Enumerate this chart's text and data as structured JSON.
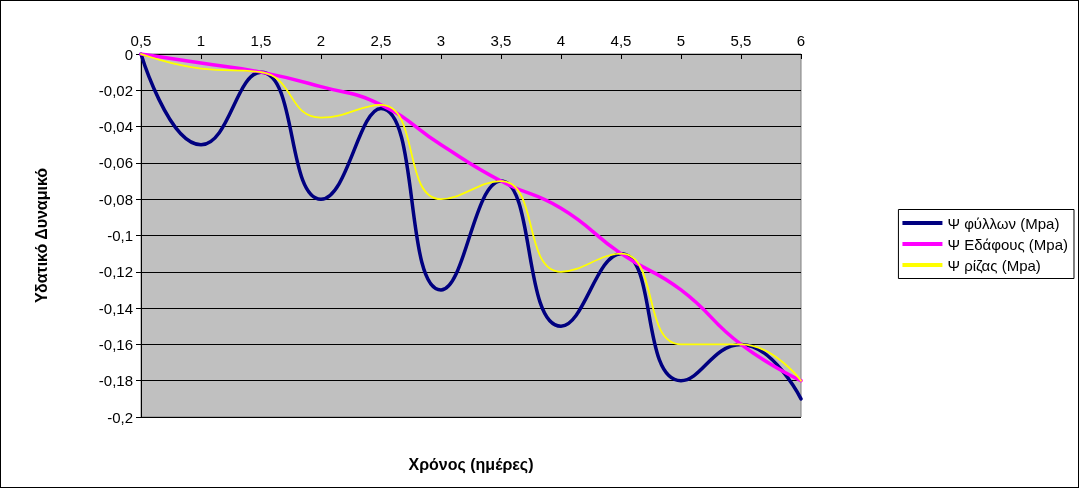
{
  "chart_data": {
    "type": "line",
    "xlabel": "Χρόνος (ημέρες)",
    "ylabel": "Υδατικό Δυναμικό",
    "categories": [
      "0,5",
      "1",
      "1,5",
      "2",
      "2,5",
      "3",
      "3,5",
      "4",
      "4,5",
      "5",
      "5,5",
      "6"
    ],
    "series": [
      {
        "name": "Ψ φύλλων (Mpa)",
        "color": "#000080",
        "values": [
          0,
          -0.05,
          -0.01,
          -0.08,
          -0.03,
          -0.13,
          -0.07,
          -0.15,
          -0.11,
          -0.18,
          -0.16,
          -0.19
        ]
      },
      {
        "name": "Ψ Εδάφους (Mpa)",
        "color": "#ff00ff",
        "values": [
          0,
          -0.005,
          -0.01,
          -0.018,
          -0.028,
          -0.05,
          -0.07,
          -0.085,
          -0.11,
          -0.13,
          -0.16,
          -0.18
        ]
      },
      {
        "name": "Ψ ρίζας (Mpa)",
        "color": "#ffff00",
        "values": [
          0,
          -0.008,
          -0.01,
          -0.035,
          -0.028,
          -0.08,
          -0.07,
          -0.12,
          -0.11,
          -0.16,
          -0.16,
          -0.18
        ]
      }
    ],
    "ylim": [
      -0.2,
      0
    ],
    "yticks": [
      {
        "value": -0.2,
        "label": "-0,2"
      },
      {
        "value": -0.18,
        "label": "-0,18"
      },
      {
        "value": -0.16,
        "label": "-0,16"
      },
      {
        "value": -0.14,
        "label": "-0,14"
      },
      {
        "value": -0.12,
        "label": "-0,12"
      },
      {
        "value": -0.1,
        "label": "-0,1"
      },
      {
        "value": -0.08,
        "label": "-0,08"
      },
      {
        "value": -0.06,
        "label": "-0,06"
      },
      {
        "value": -0.04,
        "label": "-0,04"
      },
      {
        "value": -0.02,
        "label": "-0,02"
      },
      0
    ],
    "grid": "y",
    "legend": "right",
    "marker": "none",
    "line_style": "solid"
  }
}
